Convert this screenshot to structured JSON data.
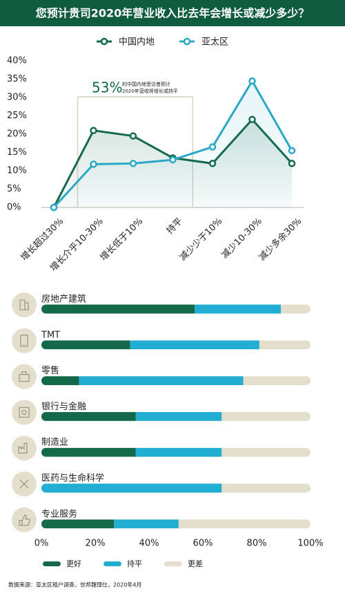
{
  "chart_data": [
    {
      "type": "line",
      "title": "您预计贵司2020年营业收入比去年会增长或减少多少？",
      "categories": [
        "增长超过30%",
        "增长介乎10-30%",
        "增长低于10%",
        "持平",
        "减少少于10%",
        "减少10-30%",
        "减少多余30%"
      ],
      "series": [
        {
          "name": "中国内地",
          "color": "#14694a",
          "values": [
            0,
            21,
            19.5,
            13.5,
            12,
            24,
            12
          ]
        },
        {
          "name": "亚太区",
          "color": "#2aa8c8",
          "values": [
            0,
            11.8,
            12,
            13,
            16.5,
            34.5,
            15.5
          ]
        }
      ],
      "ylim": [
        0,
        40
      ],
      "yticks": [
        {
          "value": 0,
          "label": "0%"
        },
        {
          "value": 5,
          "label": "5%"
        },
        {
          "value": 10,
          "label": "10%"
        },
        {
          "value": 15,
          "label": "15%"
        },
        {
          "value": 20,
          "label": "20%"
        },
        {
          "value": 25,
          "label": "25%"
        },
        {
          "value": 30,
          "label": "30%"
        },
        {
          "value": 35,
          "label": "35%"
        },
        {
          "value": 40,
          "label": "40%"
        }
      ],
      "annotation": {
        "headline": "53%",
        "lines": [
          "的中国内地受访者预计",
          "2020年营收将增长或持平"
        ]
      }
    },
    {
      "type": "stacked-bar-horizontal",
      "categories": [
        "房地产建筑",
        "TMT",
        "零售",
        "银行与金融",
        "制造业",
        "医药与生命科学",
        "专业服务"
      ],
      "series": [
        {
          "name": "更好",
          "color": "#14694a",
          "values": [
            57,
            33,
            14,
            35,
            35,
            0,
            27
          ]
        },
        {
          "name": "持平",
          "color": "#22aed2",
          "values": [
            32,
            48,
            61,
            32,
            32,
            67,
            24
          ]
        },
        {
          "name": "更差",
          "color": "#e3dfcc",
          "values": [
            11,
            19,
            25,
            33,
            33,
            33,
            49
          ]
        }
      ],
      "xlim": [
        0,
        100
      ],
      "xticks": [
        {
          "value": 0,
          "label": "0%"
        },
        {
          "value": 20,
          "label": "20%"
        },
        {
          "value": 40,
          "label": "40%"
        },
        {
          "value": 60,
          "label": "60%"
        },
        {
          "value": 80,
          "label": "80%"
        },
        {
          "value": 100,
          "label": "100%"
        }
      ],
      "source": "数据来源：亚太区租户调查，世邦魏理仕，2020年4月"
    }
  ]
}
